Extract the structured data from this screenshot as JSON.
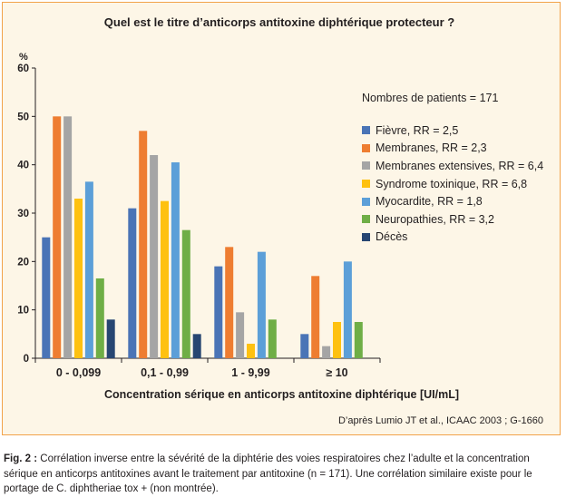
{
  "title": "Quel est le titre d’anticorps antitoxine diphtérique protecteur ?",
  "source": "D’après Lumio JT et al., ICAAC 2003 ; G-1660",
  "caption": {
    "label": "Fig. 2 :",
    "text": " Corrélation inverse entre la sévérité de la diphtérie des voies respiratoires chez l’adulte et la concentration sérique en anticorps antitoxines avant le traitement par antitoxine (n = 171). Une corrélation similaire existe pour le portage de C. diphtheriae tox + (non montrée)."
  },
  "colors": {
    "panel_bg": "#fdf6e7",
    "panel_border": "#f2a34a"
  },
  "chart_data": {
    "type": "bar",
    "title": "Quel est le titre d’anticorps antitoxine diphtérique protecteur ?",
    "ylabel": "%",
    "xlabel": "Concentration sérique en anticorps antitoxine diphtérique [UI/mL]",
    "ylim": [
      0,
      60
    ],
    "yticks": [
      0,
      10,
      20,
      30,
      40,
      50,
      60
    ],
    "grid": false,
    "legend_position": "right",
    "legend_title": "Nombres de patients = 171",
    "categories": [
      "0 - 0,099",
      "0,1 - 0,99",
      "1 - 9,99",
      "≥ 10"
    ],
    "series": [
      {
        "name": "Fièvre, RR = 2,5",
        "color": "#4a74b6",
        "values": [
          25,
          31,
          19,
          5
        ]
      },
      {
        "name": "Membranes, RR = 2,3",
        "color": "#ee7d31",
        "values": [
          50,
          47,
          23,
          17
        ]
      },
      {
        "name": "Membranes extensives, RR = 6,4",
        "color": "#a5a5a5",
        "values": [
          50,
          42,
          9.5,
          2.5
        ]
      },
      {
        "name": "Syndrome toxinique, RR = 6,8",
        "color": "#fec110",
        "values": [
          33,
          32.5,
          3,
          7.5
        ]
      },
      {
        "name": "Myocardite, RR = 1,8",
        "color": "#5c9fd8",
        "values": [
          36.5,
          40.5,
          22,
          20
        ]
      },
      {
        "name": "Neuropathies, RR = 3,2",
        "color": "#6fae46",
        "values": [
          16.5,
          26.5,
          8,
          7.5
        ]
      },
      {
        "name": "Décès",
        "color": "#274672",
        "values": [
          8,
          5,
          null,
          null
        ]
      }
    ]
  }
}
